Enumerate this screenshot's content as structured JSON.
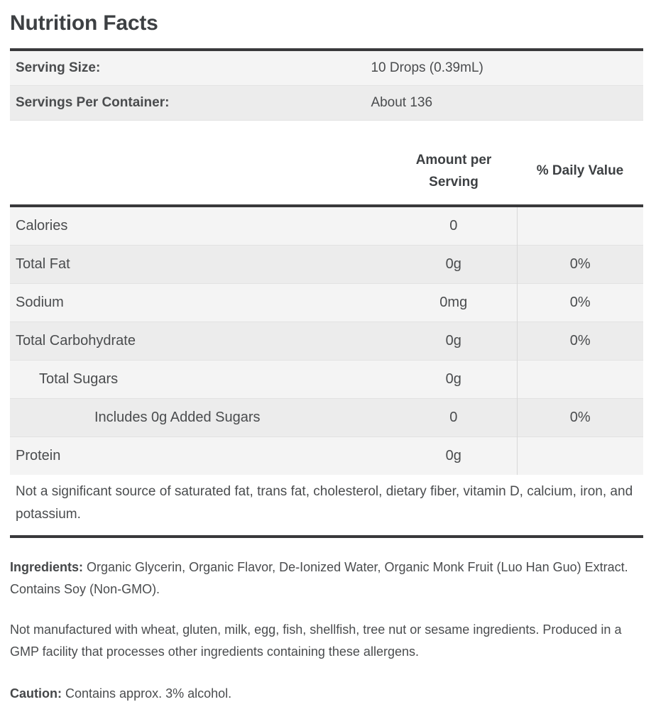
{
  "title": "Nutrition Facts",
  "serving_info": {
    "rows": [
      {
        "label": "Serving Size:",
        "value": "10 Drops (0.39mL)"
      },
      {
        "label": "Servings Per Container:",
        "value": "About 136"
      }
    ]
  },
  "nutrition_table": {
    "amount_header": "Amount per Serving",
    "daily_value_header": "% Daily Value",
    "rows": [
      {
        "label": "Calories",
        "amount": "0",
        "dv": "",
        "indent": 0
      },
      {
        "label": "Total Fat",
        "amount": "0g",
        "dv": "0%",
        "indent": 0
      },
      {
        "label": "Sodium",
        "amount": "0mg",
        "dv": "0%",
        "indent": 0
      },
      {
        "label": "Total Carbohydrate",
        "amount": "0g",
        "dv": "0%",
        "indent": 0
      },
      {
        "label": "Total Sugars",
        "amount": "0g",
        "dv": "",
        "indent": 1
      },
      {
        "label": "Includes 0g Added Sugars",
        "amount": "0",
        "dv": "0%",
        "indent": 2
      },
      {
        "label": "Protein",
        "amount": "0g",
        "dv": "",
        "indent": 0
      }
    ],
    "footnote": "Not a significant source of saturated fat, trans fat, cholesterol, dietary fiber, vitamin D, calcium, iron, and potassium."
  },
  "ingredients": {
    "label": "Ingredients:",
    "text": "Organic Glycerin, Organic Flavor, De-Ionized Water, Organic Monk Fruit (Luo Han Guo) Extract. Contains Soy (Non-GMO)."
  },
  "allergen_statement": "Not manufactured with wheat, gluten, milk, egg, fish, shellfish, tree nut or sesame ingredients. Produced in a GMP facility that processes other ingredients containing these allergens.",
  "caution": {
    "label": "Caution:",
    "text": "Contains approx. 3% alcohol."
  },
  "colors": {
    "thick_border": "#39393b",
    "row_light": "#f4f4f4",
    "row_dark": "#ececec",
    "row_separator": "#e2e2e2",
    "column_divider": "#d8d8d8",
    "title_text": "#3d4043",
    "body_text": "#4a4c4e",
    "background": "#ffffff"
  }
}
